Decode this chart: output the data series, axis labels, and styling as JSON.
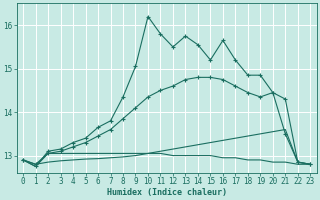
{
  "xlabel": "Humidex (Indice chaleur)",
  "xlim": [
    -0.5,
    23.5
  ],
  "ylim": [
    12.6,
    16.5
  ],
  "yticks": [
    13,
    14,
    15,
    16
  ],
  "xticks": [
    0,
    1,
    2,
    3,
    4,
    5,
    6,
    7,
    8,
    9,
    10,
    11,
    12,
    13,
    14,
    15,
    16,
    17,
    18,
    19,
    20,
    21,
    22,
    23
  ],
  "bg_color": "#c8eae4",
  "line_color": "#1a6e60",
  "grid_color": "#ffffff",
  "series1_x": [
    0,
    1,
    2,
    3,
    4,
    5,
    6,
    7,
    8,
    9,
    10,
    11,
    12,
    13,
    14,
    15,
    16,
    17,
    18,
    19,
    20,
    21,
    22,
    23
  ],
  "series1_y": [
    12.9,
    12.75,
    13.1,
    13.15,
    13.3,
    13.4,
    13.65,
    13.8,
    14.35,
    15.05,
    16.2,
    15.8,
    15.5,
    15.75,
    15.55,
    15.2,
    15.65,
    15.2,
    14.85,
    14.85,
    14.45,
    13.5,
    12.85,
    12.8
  ],
  "series2_x": [
    0,
    1,
    2,
    3,
    4,
    5,
    6,
    7,
    8,
    9,
    10,
    11,
    12,
    13,
    14,
    15,
    16,
    17,
    18,
    19,
    20,
    21,
    22,
    23
  ],
  "series2_y": [
    12.9,
    12.8,
    13.05,
    13.1,
    13.2,
    13.3,
    13.45,
    13.6,
    13.85,
    14.1,
    14.35,
    14.5,
    14.6,
    14.75,
    14.8,
    14.8,
    14.75,
    14.6,
    14.45,
    14.35,
    14.45,
    14.3,
    12.85,
    12.8
  ],
  "series3_x": [
    0,
    1,
    2,
    3,
    4,
    5,
    6,
    7,
    8,
    9,
    10,
    11,
    12,
    13,
    14,
    15,
    16,
    17,
    18,
    19,
    20,
    21,
    22,
    23
  ],
  "series3_y": [
    12.9,
    12.8,
    12.85,
    12.88,
    12.9,
    12.92,
    12.93,
    12.95,
    12.97,
    13.0,
    13.05,
    13.1,
    13.15,
    13.2,
    13.25,
    13.3,
    13.35,
    13.4,
    13.45,
    13.5,
    13.55,
    13.6,
    12.85,
    12.8
  ],
  "series4_x": [
    0,
    1,
    2,
    3,
    4,
    5,
    6,
    7,
    8,
    9,
    10,
    11,
    12,
    13,
    14,
    15,
    16,
    17,
    18,
    19,
    20,
    21,
    22,
    23
  ],
  "series4_y": [
    12.9,
    12.75,
    13.05,
    13.05,
    13.05,
    13.05,
    13.05,
    13.05,
    13.05,
    13.05,
    13.05,
    13.05,
    13.0,
    13.0,
    13.0,
    13.0,
    12.95,
    12.95,
    12.9,
    12.9,
    12.85,
    12.85,
    12.8,
    12.8
  ]
}
